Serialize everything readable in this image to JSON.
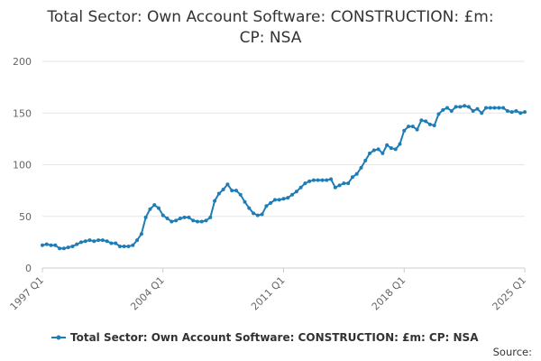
{
  "chart_data": {
    "type": "line",
    "title_lines": [
      "Total Sector: Own Account Software: CONSTRUCTION: £m:",
      "CP: NSA"
    ],
    "xlabel": "",
    "ylabel": "",
    "ylim": [
      0,
      200
    ],
    "y_ticks": [
      0,
      50,
      100,
      150,
      200
    ],
    "x_ticks": [
      "1997 Q1",
      "2004 Q1",
      "2011 Q1",
      "2018 Q1",
      "2025 Q1"
    ],
    "grid": "horizontal",
    "legend_placement": "bottom",
    "series": [
      {
        "name": "Total Sector: Own Account Software: CONSTRUCTION: £m: CP: NSA",
        "color": "#1f7db6",
        "x": [
          "1997 Q1",
          "1997 Q2",
          "1997 Q3",
          "1997 Q4",
          "1998 Q1",
          "1998 Q2",
          "1998 Q3",
          "1998 Q4",
          "1999 Q1",
          "1999 Q2",
          "1999 Q3",
          "1999 Q4",
          "2000 Q1",
          "2000 Q2",
          "2000 Q3",
          "2000 Q4",
          "2001 Q1",
          "2001 Q2",
          "2001 Q3",
          "2001 Q4",
          "2002 Q1",
          "2002 Q2",
          "2002 Q3",
          "2002 Q4",
          "2003 Q1",
          "2003 Q2",
          "2003 Q3",
          "2003 Q4",
          "2004 Q1",
          "2004 Q2",
          "2004 Q3",
          "2004 Q4",
          "2005 Q1",
          "2005 Q2",
          "2005 Q3",
          "2005 Q4",
          "2006 Q1",
          "2006 Q2",
          "2006 Q3",
          "2006 Q4",
          "2007 Q1",
          "2007 Q2",
          "2007 Q3",
          "2007 Q4",
          "2008 Q1",
          "2008 Q2",
          "2008 Q3",
          "2008 Q4",
          "2009 Q1",
          "2009 Q2",
          "2009 Q3",
          "2009 Q4",
          "2010 Q1",
          "2010 Q2",
          "2010 Q3",
          "2010 Q4",
          "2011 Q1",
          "2011 Q2",
          "2011 Q3",
          "2011 Q4",
          "2012 Q1",
          "2012 Q2",
          "2012 Q3",
          "2012 Q4",
          "2013 Q1",
          "2013 Q2",
          "2013 Q3",
          "2013 Q4",
          "2014 Q1",
          "2014 Q2",
          "2014 Q3",
          "2014 Q4",
          "2015 Q1",
          "2015 Q2",
          "2015 Q3",
          "2015 Q4",
          "2016 Q1",
          "2016 Q2",
          "2016 Q3",
          "2016 Q4",
          "2017 Q1",
          "2017 Q2",
          "2017 Q3",
          "2017 Q4",
          "2018 Q1",
          "2018 Q2",
          "2018 Q3",
          "2018 Q4",
          "2019 Q1",
          "2019 Q2",
          "2019 Q3",
          "2019 Q4",
          "2020 Q1",
          "2020 Q2",
          "2020 Q3",
          "2020 Q4",
          "2021 Q1",
          "2021 Q2",
          "2021 Q3",
          "2021 Q4",
          "2022 Q1",
          "2022 Q2",
          "2022 Q3",
          "2022 Q4",
          "2023 Q1",
          "2023 Q2",
          "2023 Q3",
          "2023 Q4",
          "2024 Q1",
          "2024 Q2",
          "2024 Q3",
          "2024 Q4",
          "2025 Q1"
        ],
        "values": [
          22,
          23,
          22,
          22,
          19,
          19,
          20,
          21,
          23,
          25,
          26,
          27,
          26,
          27,
          27,
          26,
          24,
          24,
          21,
          21,
          21,
          22,
          27,
          33,
          49,
          57,
          61,
          58,
          51,
          48,
          45,
          46,
          48,
          49,
          49,
          46,
          45,
          45,
          46,
          49,
          65,
          72,
          76,
          81,
          75,
          75,
          71,
          64,
          58,
          53,
          51,
          52,
          60,
          63,
          66,
          66,
          67,
          68,
          71,
          74,
          78,
          82,
          84,
          85,
          85,
          85,
          85,
          86,
          78,
          80,
          82,
          82,
          88,
          91,
          97,
          104,
          111,
          114,
          115,
          111,
          119,
          116,
          115,
          120,
          133,
          137,
          137,
          134,
          143,
          142,
          139,
          138,
          149,
          153,
          155,
          152,
          156,
          156,
          157,
          156,
          152,
          154,
          150,
          155,
          155,
          155,
          155,
          155,
          152,
          151,
          152,
          150,
          151
        ]
      }
    ],
    "source_label": "Source:"
  }
}
